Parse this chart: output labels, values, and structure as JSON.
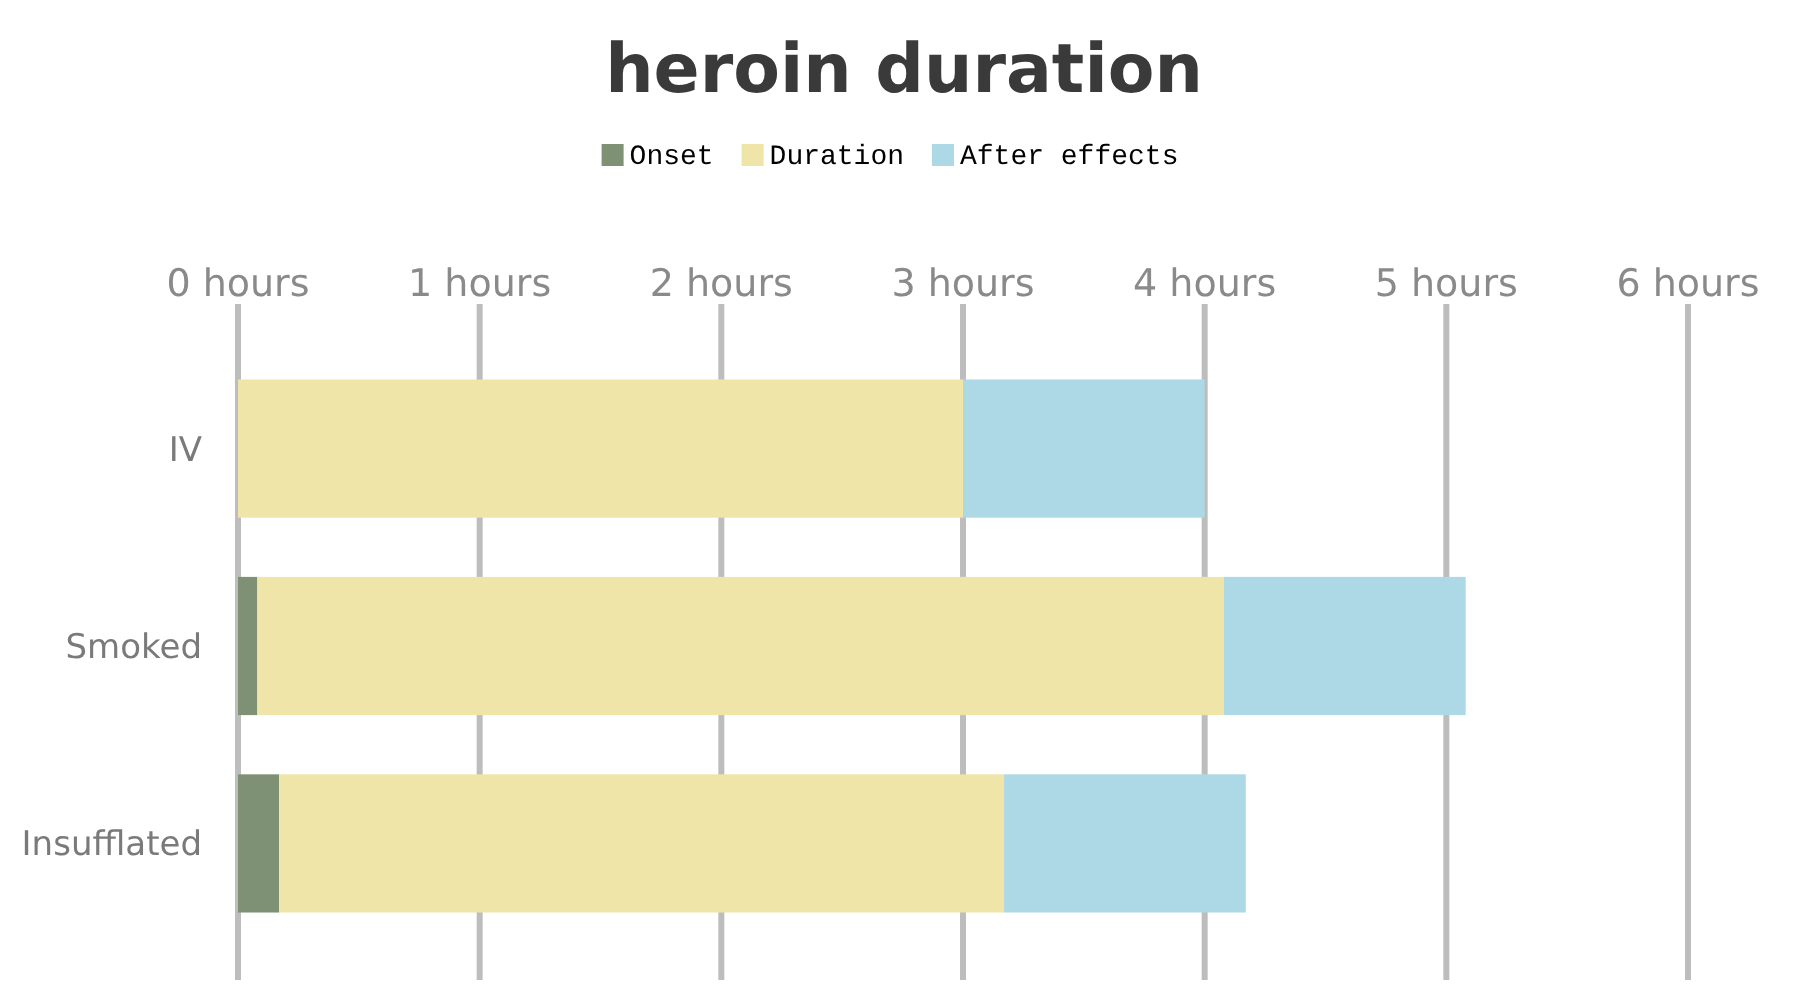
{
  "chart_data": {
    "type": "bar",
    "title": "heroin duration",
    "orientation": "horizontal",
    "stacked": true,
    "categories": [
      "IV",
      "Smoked",
      "Insufflated"
    ],
    "series": [
      {
        "name": "Onset",
        "color": "#7f9174",
        "values": [
          0,
          0.08,
          0.17
        ]
      },
      {
        "name": "Duration",
        "color": "#efe5a8",
        "values": [
          3,
          4,
          3
        ]
      },
      {
        "name": "After effects",
        "color": "#add8e6",
        "values": [
          1,
          1,
          1
        ]
      }
    ],
    "xlim": [
      0,
      6
    ],
    "xticks": [
      {
        "value": 0,
        "label": "0 hours"
      },
      {
        "value": 1,
        "label": "1 hours"
      },
      {
        "value": 2,
        "label": "2 hours"
      },
      {
        "value": 3,
        "label": "3 hours"
      },
      {
        "value": 4,
        "label": "4 hours"
      },
      {
        "value": 5,
        "label": "5 hours"
      },
      {
        "value": 6,
        "label": "6 hours"
      }
    ],
    "grid": "x",
    "legend": "top"
  }
}
